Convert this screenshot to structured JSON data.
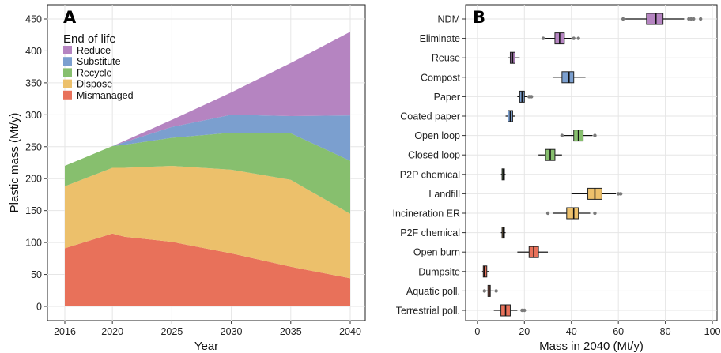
{
  "chart_data": [
    {
      "panel": "A",
      "type": "area",
      "stacked": true,
      "xlabel": "Year",
      "ylabel": "Plastic mass (Mt/y)",
      "xlim": [
        2016,
        2040
      ],
      "ylim": [
        0,
        450
      ],
      "x_ticks": [
        2016,
        2020,
        2025,
        2030,
        2035,
        2040
      ],
      "y_ticks": [
        0,
        50,
        100,
        150,
        200,
        250,
        300,
        350,
        400,
        450
      ],
      "grid": true,
      "legend": {
        "title": "End of life",
        "placement": "top-left",
        "entries": [
          "Reduce",
          "Substitute",
          "Recycle",
          "Dispose",
          "Mismanaged"
        ]
      },
      "x": [
        2016,
        2020,
        2021,
        2025,
        2030,
        2035,
        2040
      ],
      "series": [
        {
          "name": "Mismanaged",
          "color": "#e8715a",
          "values": [
            91,
            114,
            109,
            101,
            83,
            62,
            44
          ]
        },
        {
          "name": "Dispose",
          "color": "#ecc06b",
          "values": [
            97,
            103,
            108,
            119,
            131,
            136,
            101
          ]
        },
        {
          "name": "Recycle",
          "color": "#87bf6e",
          "values": [
            32,
            34,
            36,
            44,
            58,
            73,
            83
          ]
        },
        {
          "name": "Substitute",
          "color": "#7b9fcf",
          "values": [
            0,
            0,
            4,
            17,
            28,
            27,
            71
          ]
        },
        {
          "name": "Reduce",
          "color": "#b584c1",
          "values": [
            0,
            0,
            2,
            11,
            35,
            83,
            131
          ]
        }
      ]
    },
    {
      "panel": "B",
      "type": "boxplot",
      "orientation": "horizontal",
      "xlabel": "Mass in 2040 (Mt/y)",
      "xlim": [
        -5,
        102
      ],
      "x_ticks": [
        0,
        20,
        40,
        60,
        80,
        100
      ],
      "grid": true,
      "categories": [
        {
          "label": "NDM",
          "color": "#b584c1",
          "whisker_low": 63,
          "q1": 72,
          "median": 76,
          "q3": 79,
          "whisker_high": 88,
          "outliers": [
            62,
            90,
            91,
            92,
            95
          ]
        },
        {
          "label": "Eliminate",
          "color": "#b584c1",
          "whisker_low": 29,
          "q1": 33,
          "median": 35,
          "q3": 37,
          "whisker_high": 40,
          "outliers": [
            28,
            41,
            43
          ]
        },
        {
          "label": "Reuse",
          "color": "#b584c1",
          "whisker_low": 13,
          "q1": 14,
          "median": 15,
          "q3": 16,
          "whisker_high": 18,
          "outliers": []
        },
        {
          "label": "Compost",
          "color": "#7b9fcf",
          "whisker_low": 32,
          "q1": 36,
          "median": 39,
          "q3": 41,
          "whisker_high": 46,
          "outliers": []
        },
        {
          "label": "Paper",
          "color": "#7b9fcf",
          "whisker_low": 17,
          "q1": 18,
          "median": 19,
          "q3": 20,
          "whisker_high": 21,
          "outliers": [
            22,
            23
          ]
        },
        {
          "label": "Coated paper",
          "color": "#7b9fcf",
          "whisker_low": 12,
          "q1": 13,
          "median": 14,
          "q3": 15,
          "whisker_high": 16,
          "outliers": []
        },
        {
          "label": "Open loop",
          "color": "#87bf6e",
          "whisker_low": 37,
          "q1": 41,
          "median": 43,
          "q3": 45,
          "whisker_high": 49,
          "outliers": [
            36,
            50
          ]
        },
        {
          "label": "Closed loop",
          "color": "#87bf6e",
          "whisker_low": 26,
          "q1": 29,
          "median": 31,
          "q3": 33,
          "whisker_high": 36,
          "outliers": []
        },
        {
          "label": "P2P chemical",
          "color": "#87bf6e",
          "whisker_low": 10,
          "q1": 10.5,
          "median": 11,
          "q3": 11.5,
          "whisker_high": 12,
          "outliers": []
        },
        {
          "label": "Landfill",
          "color": "#ecc06b",
          "whisker_low": 40,
          "q1": 47,
          "median": 50,
          "q3": 53,
          "whisker_high": 59,
          "outliers": [
            60,
            61
          ]
        },
        {
          "label": "Incineration ER",
          "color": "#ecc06b",
          "whisker_low": 32,
          "q1": 38,
          "median": 41,
          "q3": 43,
          "whisker_high": 48,
          "outliers": [
            30,
            50
          ]
        },
        {
          "label": "P2F chemical",
          "color": "#ecc06b",
          "whisker_low": 10,
          "q1": 10.5,
          "median": 11,
          "q3": 11.5,
          "whisker_high": 12,
          "outliers": []
        },
        {
          "label": "Open burn",
          "color": "#e8715a",
          "whisker_low": 17,
          "q1": 22,
          "median": 24,
          "q3": 26,
          "whisker_high": 30,
          "outliers": []
        },
        {
          "label": "Dumpsite",
          "color": "#e8715a",
          "whisker_low": 2,
          "q1": 2.5,
          "median": 3,
          "q3": 4,
          "whisker_high": 5,
          "outliers": []
        },
        {
          "label": "Aquatic poll.",
          "color": "#e8715a",
          "whisker_low": 3.5,
          "q1": 4.5,
          "median": 5,
          "q3": 5.5,
          "whisker_high": 7,
          "outliers": [
            3,
            8
          ]
        },
        {
          "label": "Terrestrial poll.",
          "color": "#e8715a",
          "whisker_low": 7,
          "q1": 10,
          "median": 12,
          "q3": 14,
          "whisker_high": 17,
          "outliers": [
            19,
            20
          ]
        }
      ]
    }
  ]
}
